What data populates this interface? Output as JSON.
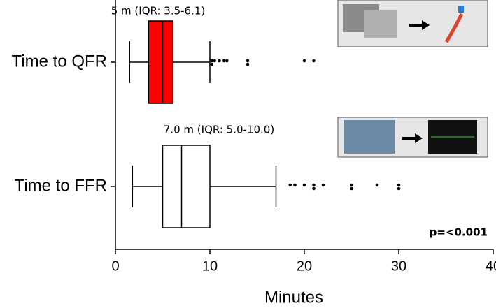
{
  "chart_data": {
    "type": "box",
    "orientation": "horizontal",
    "categories": [
      "Time to QFR",
      "Time to FFR"
    ],
    "colors": [
      "#ff0000",
      "#ffffff"
    ],
    "boxes": [
      {
        "whislo": 1.5,
        "q1": 3.5,
        "med": 5,
        "q3": 6.1,
        "whishi": 10,
        "fliers": [
          10.2,
          10.2,
          10.5,
          11,
          11.5,
          11.8,
          14,
          14,
          20,
          21
        ]
      },
      {
        "whislo": 1.8,
        "q1": 5,
        "med": 7,
        "q3": 10,
        "whishi": 17,
        "fliers": [
          18.5,
          19,
          20,
          21,
          21,
          22,
          25,
          25,
          27.7,
          30,
          30
        ]
      }
    ],
    "annotations": [
      "5 m (IQR: 3.5-6.1)",
      "7.0 m (IQR: 5.0-10.0)",
      "p=<0.001"
    ],
    "xlabel": "Minutes",
    "xlim": [
      0,
      40
    ],
    "xticks": [
      0,
      10,
      20,
      30,
      40
    ]
  }
}
